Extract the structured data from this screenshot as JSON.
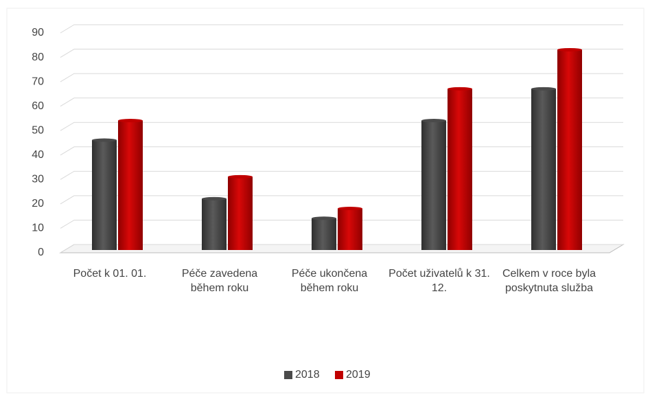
{
  "chart_data": {
    "type": "bar",
    "categories": [
      "Počet k 01. 01.",
      "Péče zavedena během roku",
      "Péče ukončena během roku",
      "Počet uživatelů k 31. 12.",
      "Celkem v roce byla poskytnuta služba"
    ],
    "series": [
      {
        "name": "2018",
        "color": "#4a4a4a",
        "values": [
          45,
          21,
          13,
          53,
          66
        ]
      },
      {
        "name": "2019",
        "color": "#c00000",
        "values": [
          53,
          30,
          17,
          66,
          82
        ]
      }
    ],
    "ylim": [
      0,
      90
    ],
    "yticks": [
      0,
      10,
      20,
      30,
      40,
      50,
      60,
      70,
      80,
      90
    ],
    "grid": true,
    "legend": "bottom"
  }
}
